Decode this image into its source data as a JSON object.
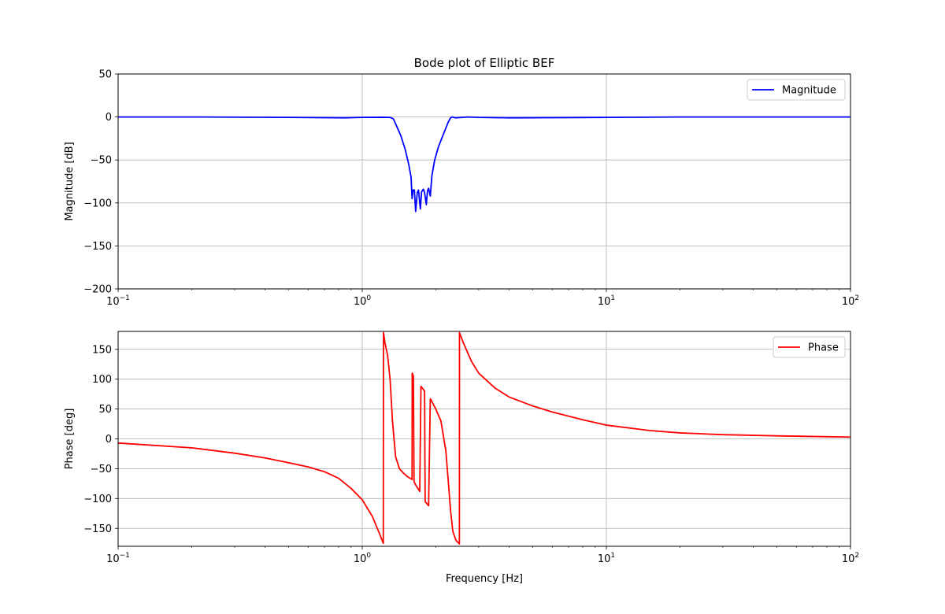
{
  "figure": {
    "title": "Bode plot of Elliptic BEF",
    "xlabel": "Frequency  [Hz]"
  },
  "chart_data": [
    {
      "type": "line",
      "title": "Bode plot of Elliptic BEF",
      "xlabel": "",
      "ylabel": "Magnitude  [dB]",
      "xscale": "log",
      "xlim": [
        0.1,
        100
      ],
      "ylim": [
        -200,
        50
      ],
      "x_ticks": [
        {
          "base": "10",
          "exp": "−1"
        },
        {
          "base": "10",
          "exp": "0"
        },
        {
          "base": "10",
          "exp": "1"
        },
        {
          "base": "10",
          "exp": "2"
        }
      ],
      "y_ticks": [
        "50",
        "0",
        "−50",
        "−100",
        "−150",
        "−200"
      ],
      "y_tick_values": [
        50,
        0,
        -50,
        -100,
        -150,
        -200
      ],
      "grid": true,
      "legend": "top-right",
      "series": [
        {
          "name": "Magnitude",
          "color": "#0000ff",
          "x": [
            0.1,
            0.2,
            0.5,
            0.85,
            1.0,
            1.2,
            1.3,
            1.34,
            1.38,
            1.44,
            1.5,
            1.55,
            1.585,
            1.6,
            1.615,
            1.635,
            1.655,
            1.68,
            1.7,
            1.73,
            1.75,
            1.78,
            1.8,
            1.83,
            1.85,
            1.87,
            1.9,
            1.93,
            1.98,
            2.05,
            2.15,
            2.25,
            2.3,
            2.34,
            2.4,
            2.7,
            3.0,
            4.0,
            10,
            20,
            100
          ],
          "y": [
            0,
            0,
            -0.5,
            -1,
            -0.5,
            -0.3,
            -0.5,
            -2,
            -10,
            -22,
            -38,
            -55,
            -70,
            -95,
            -85,
            -85,
            -110,
            -88,
            -85,
            -107,
            -87,
            -84,
            -88,
            -102,
            -86,
            -83,
            -92,
            -68,
            -50,
            -35,
            -20,
            -6,
            -1,
            0,
            -1,
            0,
            -0.5,
            -1,
            -0.5,
            0,
            0
          ]
        }
      ]
    },
    {
      "type": "line",
      "title": "",
      "xlabel": "Frequency  [Hz]",
      "ylabel": "Phase  [deg]",
      "xscale": "log",
      "xlim": [
        0.1,
        100
      ],
      "ylim": [
        -180,
        180
      ],
      "x_ticks": [
        {
          "base": "10",
          "exp": "−1"
        },
        {
          "base": "10",
          "exp": "0"
        },
        {
          "base": "10",
          "exp": "1"
        },
        {
          "base": "10",
          "exp": "2"
        }
      ],
      "y_ticks": [
        "150",
        "100",
        "50",
        "0",
        "−50",
        "−100",
        "−150"
      ],
      "y_tick_values": [
        150,
        100,
        50,
        0,
        -50,
        -100,
        -150
      ],
      "grid": true,
      "legend": "top-right",
      "series": [
        {
          "name": "Phase",
          "color": "#ff0000",
          "x": [
            0.1,
            0.2,
            0.3,
            0.4,
            0.5,
            0.6,
            0.7,
            0.8,
            0.9,
            1.0,
            1.1,
            1.18,
            1.22,
            1.222,
            1.24,
            1.27,
            1.3,
            1.33,
            1.37,
            1.42,
            1.48,
            1.54,
            1.6,
            1.602,
            1.62,
            1.63,
            1.66,
            1.72,
            1.74,
            1.8,
            1.81,
            1.87,
            1.9,
            1.91,
            2.0,
            2.1,
            2.2,
            2.25,
            2.3,
            2.35,
            2.42,
            2.5,
            2.502,
            2.6,
            2.8,
            3.0,
            3.5,
            4.0,
            5.0,
            6.0,
            7.0,
            8.0,
            10,
            15,
            20,
            30,
            50,
            100
          ],
          "y": [
            -7,
            -15,
            -24,
            -32,
            -40,
            -47,
            -55,
            -66,
            -83,
            -102,
            -130,
            -160,
            -175,
            178,
            160,
            140,
            100,
            30,
            -30,
            -50,
            -58,
            -64,
            -68,
            110,
            105,
            -72,
            -78,
            -88,
            88,
            80,
            -105,
            -112,
            67,
            66,
            50,
            30,
            -20,
            -70,
            -120,
            -155,
            -170,
            -176,
            178,
            160,
            130,
            110,
            85,
            70,
            55,
            45,
            38,
            32,
            23,
            14,
            10,
            7,
            5,
            3
          ]
        }
      ]
    }
  ]
}
